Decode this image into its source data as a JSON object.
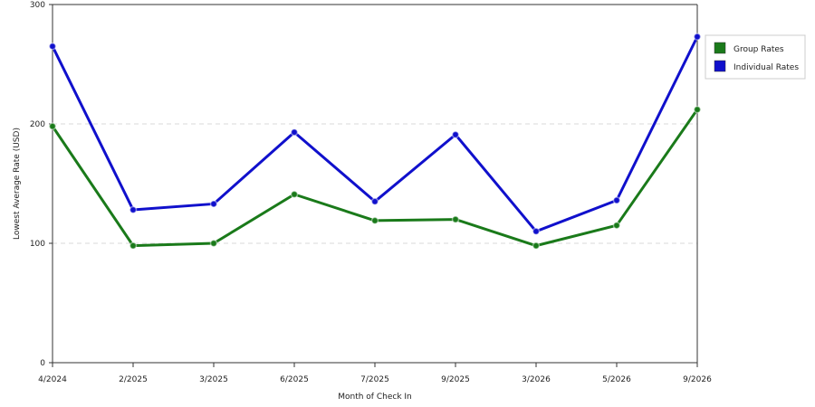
{
  "chart_data": {
    "type": "line",
    "categories": [
      "4/2024",
      "2/2025",
      "3/2025",
      "6/2025",
      "7/2025",
      "9/2025",
      "3/2026",
      "5/2026",
      "9/2026"
    ],
    "series": [
      {
        "name": "Group Rates",
        "color": "#1a7a1a",
        "values": [
          198,
          98,
          100,
          141,
          119,
          120,
          98,
          115,
          212
        ]
      },
      {
        "name": "Individual Rates",
        "color": "#1010cc",
        "values": [
          265,
          128,
          133,
          193,
          135,
          191,
          110,
          136,
          273
        ]
      }
    ],
    "title": "",
    "xlabel": "Month of Check In",
    "ylabel": "Lowest Average Rate (USD)",
    "ylim": [
      0,
      300
    ],
    "yticks": [
      0,
      100,
      200,
      300
    ],
    "grid": true,
    "legend_position": "top-right"
  }
}
